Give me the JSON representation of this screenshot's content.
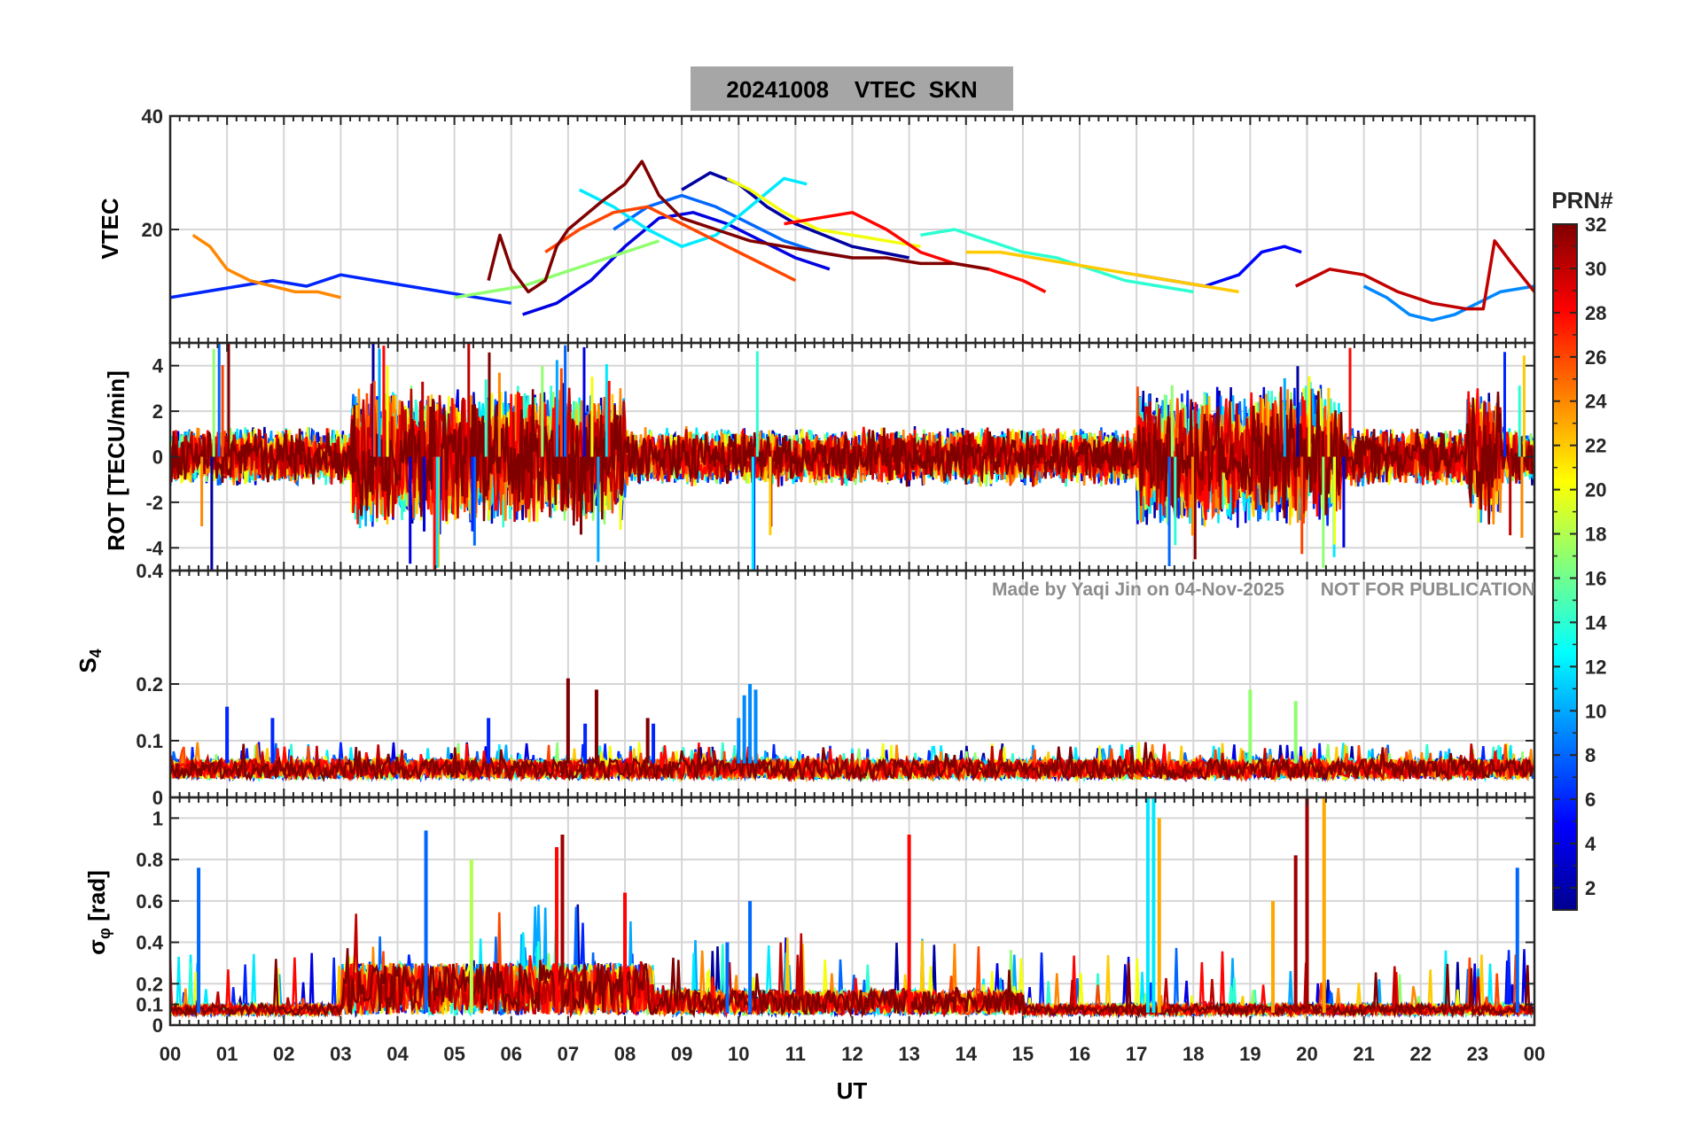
{
  "chart_data": {
    "type": "line",
    "title": "20241008    VTEC  SKN",
    "xlabel": "UT",
    "x_ticks": [
      "00",
      "01",
      "02",
      "03",
      "04",
      "05",
      "06",
      "07",
      "08",
      "09",
      "10",
      "11",
      "12",
      "13",
      "14",
      "15",
      "16",
      "17",
      "18",
      "19",
      "20",
      "21",
      "22",
      "23",
      "00"
    ],
    "xlim": [
      0,
      24
    ],
    "watermark": "Made by Yaqi Jin on 04-Nov-2025       NOT FOR PUBLICATION",
    "colorbar": {
      "label": "PRN#",
      "range": [
        1,
        32
      ],
      "ticks": [
        "2",
        "4",
        "6",
        "8",
        "10",
        "12",
        "14",
        "16",
        "18",
        "20",
        "22",
        "24",
        "26",
        "28",
        "30",
        "32"
      ]
    },
    "panels": [
      {
        "id": "vtec",
        "ylabel": "VTEC",
        "ylim": [
          0,
          40
        ],
        "yticks": [
          "20",
          "40"
        ],
        "grid": true,
        "series": [
          {
            "prn": 2,
            "x": [
              9.0,
              9.5,
              10.0,
              10.5,
              11.0,
              11.5,
              12.0,
              12.5,
              13.0
            ],
            "y": [
              27,
              30,
              28,
              24,
              21,
              19,
              17,
              16,
              15
            ]
          },
          {
            "prn": 4,
            "x": [
              6.2,
              6.8,
              7.4,
              8.0,
              8.6,
              9.2,
              9.8,
              10.4,
              11.0,
              11.6
            ],
            "y": [
              5,
              7,
              11,
              17,
              22,
              23,
              21,
              18,
              15,
              13
            ]
          },
          {
            "prn": 5,
            "x": [
              17.0,
              17.6,
              18.2,
              18.8,
              19.2,
              19.6,
              19.9
            ],
            "y": [
              12,
              11,
              10,
              12,
              16,
              17,
              16
            ]
          },
          {
            "prn": 6,
            "x": [
              0.0,
              0.6,
              1.2,
              1.8,
              2.4,
              3.0,
              3.6,
              4.2,
              4.8,
              5.4,
              6.0
            ],
            "y": [
              8,
              9,
              10,
              11,
              10,
              12,
              11,
              10,
              9,
              8,
              7
            ]
          },
          {
            "prn": 8,
            "x": [
              7.8,
              8.4,
              9.0,
              9.6,
              10.2,
              10.8,
              11.4,
              12.0
            ],
            "y": [
              20,
              24,
              26,
              24,
              21,
              18,
              16,
              15
            ]
          },
          {
            "prn": 9,
            "x": [
              21.0,
              21.4,
              21.8,
              22.2,
              22.6,
              23.0,
              23.4,
              24.0
            ],
            "y": [
              10,
              8,
              5,
              4,
              5,
              7,
              9,
              10
            ]
          },
          {
            "prn": 12,
            "x": [
              7.2,
              7.8,
              8.4,
              9.0,
              9.6,
              10.2,
              10.8,
              11.2
            ],
            "y": [
              27,
              24,
              20,
              17,
              19,
              24,
              29,
              28
            ]
          },
          {
            "prn": 14,
            "x": [
              13.2,
              13.8,
              14.4,
              15.0,
              15.6,
              16.2,
              16.8,
              17.4,
              18.0
            ],
            "y": [
              19,
              20,
              18,
              16,
              15,
              13,
              11,
              10,
              9
            ]
          },
          {
            "prn": 17,
            "x": [
              5.0,
              5.6,
              6.2,
              6.8,
              7.4,
              8.0,
              8.6
            ],
            "y": [
              8,
              9,
              10,
              12,
              14,
              16,
              18
            ]
          },
          {
            "prn": 20,
            "x": [
              9.8,
              10.2,
              10.8,
              11.4,
              12.0,
              12.6,
              13.2
            ],
            "y": [
              29,
              27,
              23,
              20,
              19,
              18,
              17
            ]
          },
          {
            "prn": 22,
            "x": [
              14.0,
              14.6,
              15.2,
              15.8,
              16.4,
              17.0,
              17.6,
              18.2,
              18.8
            ],
            "y": [
              16,
              16,
              15,
              14,
              13,
              12,
              11,
              10,
              9
            ]
          },
          {
            "prn": 24,
            "x": [
              0.4,
              0.7,
              1.0,
              1.4,
              1.8,
              2.2,
              2.6,
              3.0
            ],
            "y": [
              19,
              17,
              13,
              11,
              10,
              9,
              9,
              8
            ]
          },
          {
            "prn": 26,
            "x": [
              6.6,
              7.2,
              7.8,
              8.4,
              9.0,
              9.6,
              10.2,
              10.8,
              11.0
            ],
            "y": [
              16,
              20,
              23,
              24,
              21,
              18,
              15,
              12,
              11
            ]
          },
          {
            "prn": 28,
            "x": [
              10.8,
              11.4,
              12.0,
              12.6,
              13.2,
              13.8,
              14.4,
              15.0,
              15.4
            ],
            "y": [
              21,
              22,
              23,
              20,
              16,
              14,
              13,
              11,
              9
            ]
          },
          {
            "prn": 30,
            "x": [
              19.8,
              20.4,
              21.0,
              21.6,
              22.2,
              22.8,
              23.1,
              23.3,
              23.6,
              24.0
            ],
            "y": [
              10,
              13,
              12,
              9,
              7,
              6,
              6,
              18,
              14,
              9
            ]
          },
          {
            "prn": 32,
            "x": [
              5.6,
              5.8,
              6.0,
              6.3,
              6.6,
              6.8,
              7.0,
              7.6,
              8.0,
              8.3,
              8.6,
              9.0,
              9.6,
              10.2,
              10.8,
              11.4,
              12.0,
              12.6,
              13.2,
              13.8,
              14.4
            ],
            "y": [
              11,
              19,
              13,
              9,
              11,
              17,
              20,
              25,
              28,
              32,
              26,
              22,
              20,
              18,
              17,
              16,
              15,
              15,
              14,
              14,
              13
            ]
          }
        ]
      },
      {
        "id": "rot",
        "ylabel": "ROT [TECU/min]",
        "ylim": [
          -5,
          5
        ],
        "yticks": [
          "-4",
          "-2",
          "0",
          "2",
          "4"
        ],
        "grid": true,
        "note": "Rate of TEC, noisy fluctuations around 0, strongest 03-08 UT, 17-21 UT and near 23 UT"
      },
      {
        "id": "s4",
        "ylabel": "S4",
        "ylim": [
          0,
          0.4
        ],
        "yticks": [
          "0",
          "0.1",
          "0.2",
          "0.4"
        ],
        "grid": true,
        "series": [
          {
            "prn": 6,
            "x": [
              1.0,
              1.8,
              5.6,
              7.3,
              8.5
            ],
            "y": [
              0.16,
              0.14,
              0.14,
              0.13,
              0.13
            ]
          },
          {
            "prn": 9,
            "x": [
              10.0,
              10.1,
              10.2,
              10.3
            ],
            "y": [
              0.14,
              0.18,
              0.2,
              0.19
            ]
          },
          {
            "prn": 17,
            "x": [
              19.0,
              19.8
            ],
            "y": [
              0.19,
              0.17
            ]
          },
          {
            "prn": 32,
            "x": [
              7.0,
              7.5,
              8.4
            ],
            "y": [
              0.21,
              0.19,
              0.14
            ]
          }
        ]
      },
      {
        "id": "sigma_phi",
        "ylabel": "σφ [rad]",
        "ylim": [
          0,
          1.1
        ],
        "yticks": [
          "0",
          "0.1",
          "0.2",
          "0.4",
          "0.6",
          "0.8",
          "1"
        ],
        "grid": true,
        "series": [
          {
            "prn": 8,
            "x": [
              0.5,
              4.5,
              9.8,
              10.2,
              23.7
            ],
            "y": [
              0.76,
              0.94,
              0.4,
              0.6,
              0.76
            ]
          },
          {
            "prn": 12,
            "x": [
              17.2,
              17.3
            ],
            "y": [
              1.1,
              1.1
            ]
          },
          {
            "prn": 18,
            "x": [
              5.3
            ],
            "y": [
              0.8
            ]
          },
          {
            "prn": 23,
            "x": [
              17.4,
              19.4,
              20.3
            ],
            "y": [
              1.0,
              0.6,
              1.1
            ]
          },
          {
            "prn": 28,
            "x": [
              6.8,
              8.0,
              13.0
            ],
            "y": [
              0.86,
              0.64,
              0.92
            ]
          },
          {
            "prn": 31,
            "x": [
              6.9,
              19.8,
              20.0
            ],
            "y": [
              0.92,
              0.82,
              1.1
            ]
          }
        ]
      }
    ]
  }
}
